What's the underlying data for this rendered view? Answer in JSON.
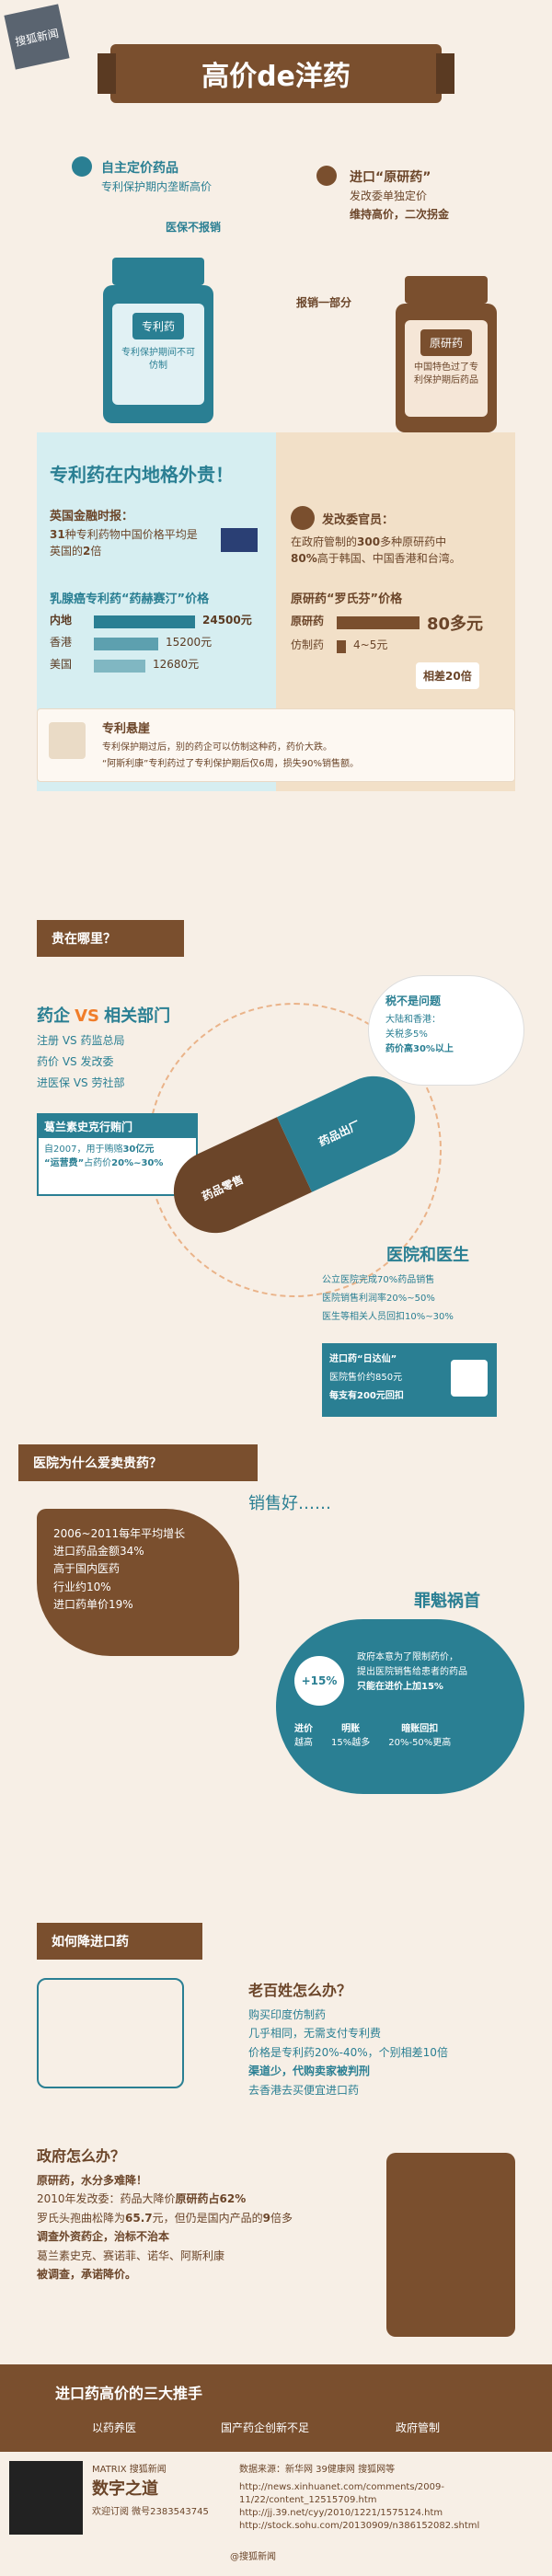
{
  "header": {
    "corner_badge": "搜狐新闻",
    "title": "高价de洋药"
  },
  "top": {
    "left_title": "自主定价药品",
    "left_sub": "专利保护期内垄断高价",
    "left_label": "医保不报销",
    "left_bottle_label": "专利药",
    "left_bottle_sub": "专利保护期间不可仿制",
    "right_title": "进口“原研药”",
    "right_sub": "发改委单独定价",
    "right_note": "维持高价，二次拐金",
    "right_label": "报销一部分",
    "right_bottle_label": "原研药",
    "right_bottle_sub": "中国特色过了专利保护期后药品"
  },
  "section1": {
    "headline": "专利药在内地格外贵！",
    "uk_title": "英国金融时报：",
    "uk_text_a": "31",
    "uk_text_b": "种专利药物中国价格平均是英国的",
    "uk_text_c": "2",
    "uk_text_d": "倍",
    "drug_title": "乳腺癌专利药“药赫赛汀”价格",
    "rows": [
      {
        "label": "内地",
        "value": "24500元"
      },
      {
        "label": "香港",
        "value": "15200元"
      },
      {
        "label": "美国",
        "value": "12680元"
      }
    ],
    "official_title": "发改委官员：",
    "official_text_a": "在政府管制的",
    "official_text_b": "300",
    "official_text_c": "多种原研药中",
    "official_text_d": "80%",
    "official_text_e": "高于韩国、中国香港和台湾。",
    "lipitor_title": "原研药“罗氏芬”价格",
    "lipitor_row1_label": "原研药",
    "lipitor_row1_value": "80多元",
    "lipitor_row2_label": "仿制药",
    "lipitor_row2_value": "4~5元",
    "lipitor_badge": "相差20倍",
    "cliff_title": "专利悬崖",
    "cliff_text1": "专利保护期过后，别的药企可以仿制这种药，药价大跌。",
    "cliff_text2": "“阿斯利康”专利药过了专利保护期后仅6周，损失90%销售额。"
  },
  "section2": {
    "heading": "贵在哪里？",
    "left_title_a": "药企",
    "left_title_b": "VS",
    "left_title_c": "相关部门",
    "left_items": [
      "注册 VS 药监总局",
      "药价 VS 发改委",
      "进医保 VS 劳社部"
    ],
    "gsk_title": "葛兰素史克行贿门",
    "gsk_text_a": "自2007，用于贿赂",
    "gsk_text_b": "30亿元",
    "gsk_text_c": "“运营费”",
    "gsk_text_d": "占药价",
    "gsk_text_e": "20%~30%",
    "tax_title": "税不是问题",
    "tax_text1": "大陆和香港：",
    "tax_text2": "关税多5%",
    "tax_text3": "药价高30%以上",
    "capsule_top": "药品出厂",
    "capsule_bottom": "药品零售",
    "hospital_title": "医院和医生",
    "hospital_items": [
      "公立医院完成70%药品销售",
      "医院销售利润率20%~50%",
      "医生等相关人员回扣10%~30%"
    ],
    "rx_title": "进口药“日达仙”",
    "rx_text1": "医院售价约850元",
    "rx_text2": "每支有200元回扣"
  },
  "section3": {
    "heading": "医院为什么爱卖贵药？",
    "sales_title": "销售好……",
    "sales_text1": "2006~2011每年平均增长",
    "sales_text2": "进口药品金额34%",
    "sales_text3": "高于国内医药",
    "sales_text4": "行业约10%",
    "sales_text5": "进口药单价19%",
    "culprit_title": "罪魁祸首",
    "culprit_text1": "政府本意为了限制药价，",
    "culprit_text2": "提出医院销售给患者的药品",
    "culprit_text3": "只能在进价上加15%",
    "plus_label": "+15%",
    "cols": [
      {
        "top": "进价",
        "bottom": "越高"
      },
      {
        "top": "明账",
        "bottom": "15%越多"
      },
      {
        "top": "暗账回扣",
        "bottom": "20%-50%更高"
      }
    ]
  },
  "section4": {
    "heading": "如何降进口药",
    "people_title": "老百姓怎么办？",
    "people_items": [
      "购买印度仿制药",
      "几乎相同，无需支付专利费",
      "价格是专利药20%-40%，个别相差10倍",
      "渠道少，代购卖家被判刑",
      "去香港去买便宜进口药"
    ],
    "gov_title": "政府怎么办？",
    "gov_item1": "原研药，水分多难降！",
    "gov_item2a": "2010年发改委：药品大降价",
    "gov_item2b": "原研药占62%",
    "gov_item3a": "罗氏头孢曲松降为",
    "gov_item3b": "65.7",
    "gov_item3c": "元，但仍是国内产品的",
    "gov_item3d": "9",
    "gov_item3e": "倍多",
    "gov_item4": "调查外资药企，治标不治本",
    "gov_item5": "葛兰素史克、赛诺菲、诺华、阿斯利康",
    "gov_item6": "被调查，承诺降价。"
  },
  "bottom": {
    "title": "进口药高价的三大推手",
    "items": [
      "以药养医",
      "国产药企创新不足",
      "政府管制"
    ]
  },
  "footer": {
    "sources_title": "数据来源：新华网 39健康网 搜狐网等",
    "brand_top": "MATRIX 搜狐新闻",
    "brand_main": "数字之道",
    "wechat": "欢迎订阅 微号2383543745",
    "url1": "http://news.xinhuanet.com/comments/2009-11/22/content_12515709.htm",
    "url2": "http://jj.39.net/cyy/2010/1221/1575124.htm",
    "url3": "http://stock.sohu.com/20130909/n386152082.shtml",
    "sohu": "@搜狐新闻"
  },
  "colors": {
    "teal": "#2a7f93",
    "brown": "#7a4f2e",
    "orange": "#f07d2a",
    "cream": "#f7efe6"
  }
}
